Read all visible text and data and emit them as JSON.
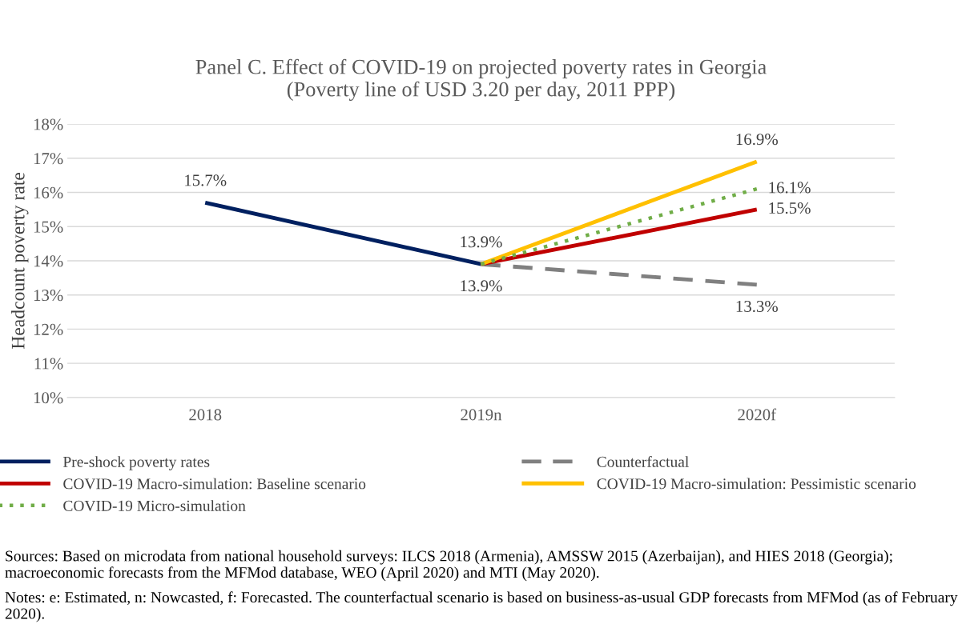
{
  "chart_data": {
    "type": "line",
    "title": "Panel C. Effect of COVID-19 on projected poverty rates in Georgia\n(Poverty line of USD 3.20 per day, 2011 PPP)",
    "ylabel": "Headcount poverty rate",
    "categories": [
      "2018",
      "2019n",
      "2020f"
    ],
    "series": [
      {
        "name": "Pre-shock poverty rates",
        "color": "#002060",
        "line_style": "solid",
        "values": [
          15.7,
          13.9,
          null
        ],
        "value_labels": [
          "15.7%",
          "13.9%",
          null
        ]
      },
      {
        "name": "Counterfactual",
        "color": "#808080",
        "line_style": "dashed",
        "values": [
          null,
          13.9,
          13.3
        ],
        "value_labels": [
          null,
          "13.9%",
          "13.3%"
        ]
      },
      {
        "name": "COVID-19 Macro-simulation: Baseline scenario",
        "color": "#c00000",
        "line_style": "solid",
        "values": [
          null,
          13.9,
          15.5
        ],
        "value_labels": [
          null,
          null,
          "15.5%"
        ]
      },
      {
        "name": "COVID-19 Macro-simulation: Pessimistic scenario",
        "color": "#ffc000",
        "line_style": "solid",
        "values": [
          null,
          13.9,
          16.9
        ],
        "value_labels": [
          null,
          null,
          "16.9%"
        ]
      },
      {
        "name": "COVID-19 Micro-simulation",
        "color": "#70ad47",
        "line_style": "dotted",
        "values": [
          null,
          13.9,
          16.1
        ],
        "value_labels": [
          null,
          null,
          "16.1%"
        ]
      }
    ],
    "ylim": [
      10,
      18
    ],
    "yticks": [
      {
        "value": 10,
        "label": "10%"
      },
      {
        "value": 11,
        "label": "11%"
      },
      {
        "value": 12,
        "label": "12%"
      },
      {
        "value": 13,
        "label": "13%"
      },
      {
        "value": 14,
        "label": "14%"
      },
      {
        "value": 15,
        "label": "15%"
      },
      {
        "value": 16,
        "label": "16%"
      },
      {
        "value": 17,
        "label": "17%"
      },
      {
        "value": 18,
        "label": "18%"
      }
    ],
    "grid": "y",
    "legend": "bottom",
    "marker": "none",
    "annotations": [
      "Sources: Based on microdata from national household surveys: ILCS 2018 (Armenia), AMSSW 2015 (Azerbaijan), and HIES 2018 (Georgia); macroeconomic forecasts from the MFMod database, WEO (April 2020) and MTI (May 2020).",
      "Notes: e: Estimated, n: Nowcasted, f: Forecasted. The counterfactual scenario is based on business-as-usual GDP forecasts from MFMod (as of February 2020)."
    ]
  }
}
